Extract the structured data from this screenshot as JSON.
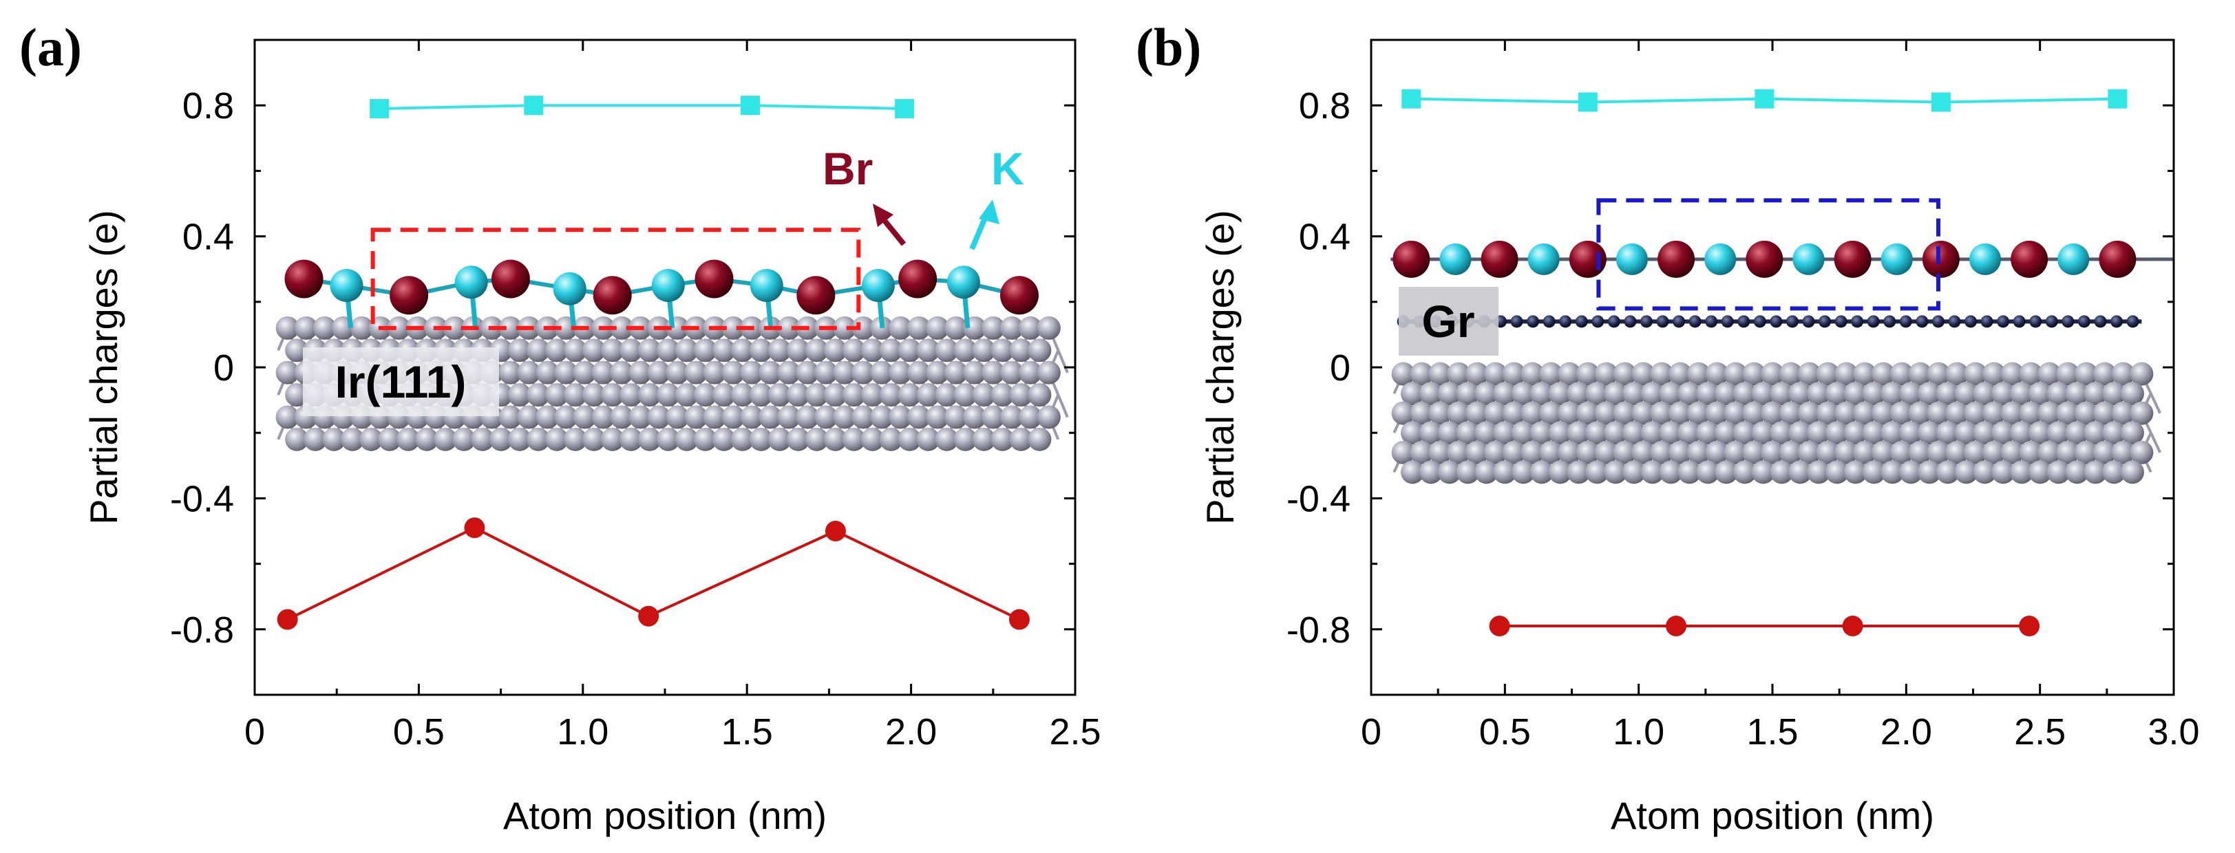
{
  "colors": {
    "k": "#27d4e6",
    "br": "#8b0a23",
    "kSeries": "#33e6e6",
    "brSeries": "#cc1111",
    "ir": "#a7a7b7",
    "gr": "#1d2447",
    "redBox": "#ff1a1a",
    "blueBox": "#1a1acc"
  },
  "chart_data": [
    {
      "panel": "(a)",
      "type": "line",
      "xlabel": "Atom position (nm)",
      "ylabel": "Partial charges (e)",
      "xlim": [
        0,
        2.5
      ],
      "ylim": [
        -1.0,
        1.0
      ],
      "xticks": [
        0,
        0.5,
        1.0,
        1.5,
        2.0,
        2.5
      ],
      "xtick_labels": [
        "0",
        "0.5",
        "1.0",
        "1.5",
        "2.0",
        "2.5"
      ],
      "yticks": [
        -0.8,
        -0.4,
        0,
        0.4,
        0.8
      ],
      "ytick_labels": [
        "-0.8",
        "-0.4",
        "0",
        "0.4",
        "0.8"
      ],
      "series": [
        {
          "name": "K",
          "marker": "square",
          "x": [
            0.38,
            0.85,
            1.51,
            1.98
          ],
          "y": [
            0.79,
            0.8,
            0.8,
            0.79
          ]
        },
        {
          "name": "Br",
          "marker": "circle",
          "x": [
            0.1,
            0.67,
            1.2,
            1.77,
            2.33
          ],
          "y": [
            -0.77,
            -0.49,
            -0.76,
            -0.5,
            -0.77
          ]
        }
      ],
      "annotations": {
        "br_label": "Br",
        "k_label": "K",
        "substrate_label": "Ir(111)"
      },
      "model": {
        "br_atoms": [
          [
            0.15,
            0.27
          ],
          [
            0.47,
            0.22
          ],
          [
            0.78,
            0.27
          ],
          [
            1.09,
            0.22
          ],
          [
            1.4,
            0.27
          ],
          [
            1.71,
            0.22
          ],
          [
            2.02,
            0.27
          ],
          [
            2.33,
            0.22
          ]
        ],
        "k_atoms": [
          [
            0.28,
            0.25
          ],
          [
            0.66,
            0.26
          ],
          [
            0.96,
            0.24
          ],
          [
            1.26,
            0.25
          ],
          [
            1.56,
            0.25
          ],
          [
            1.9,
            0.25
          ],
          [
            2.16,
            0.26
          ]
        ],
        "box": {
          "x0": 0.36,
          "x1": 1.84,
          "y0": 0.12,
          "y1": 0.42
        },
        "substrate": {
          "x0": 0.1,
          "x1": 2.42,
          "y0": -0.22,
          "y1": 0.12
        }
      }
    },
    {
      "panel": "(b)",
      "type": "line",
      "xlabel": "Atom position (nm)",
      "ylabel": "Partial charges (e)",
      "xlim": [
        0,
        3.0
      ],
      "ylim": [
        -1.0,
        1.0
      ],
      "xticks": [
        0,
        0.5,
        1.0,
        1.5,
        2.0,
        2.5,
        3.0
      ],
      "xtick_labels": [
        "0",
        "0.5",
        "1.0",
        "1.5",
        "2.0",
        "2.5",
        "3.0"
      ],
      "yticks": [
        -0.8,
        -0.4,
        0,
        0.4,
        0.8
      ],
      "ytick_labels": [
        "-0.8",
        "-0.4",
        "0",
        "0.4",
        "0.8"
      ],
      "series": [
        {
          "name": "K",
          "marker": "square",
          "x": [
            0.15,
            0.81,
            1.47,
            2.13,
            2.79
          ],
          "y": [
            0.82,
            0.81,
            0.82,
            0.81,
            0.82
          ]
        },
        {
          "name": "Br",
          "marker": "circle",
          "x": [
            0.48,
            1.14,
            1.8,
            2.46
          ],
          "y": [
            -0.79,
            -0.79,
            -0.79,
            -0.79
          ]
        }
      ],
      "annotations": {
        "substrate_label": "Gr"
      },
      "model": {
        "row_start": 0.15,
        "row_step": 0.165,
        "row_count": 17,
        "row_y": 0.33,
        "box": {
          "x0": 0.85,
          "x1": 2.12,
          "y0": 0.18,
          "y1": 0.51
        },
        "graphene": {
          "x0": 0.12,
          "x1": 2.88,
          "y": 0.14,
          "step": 0.0606
        },
        "substrate": {
          "x0": 0.12,
          "x1": 2.88,
          "y0": -0.32,
          "y1": -0.02
        }
      }
    }
  ]
}
